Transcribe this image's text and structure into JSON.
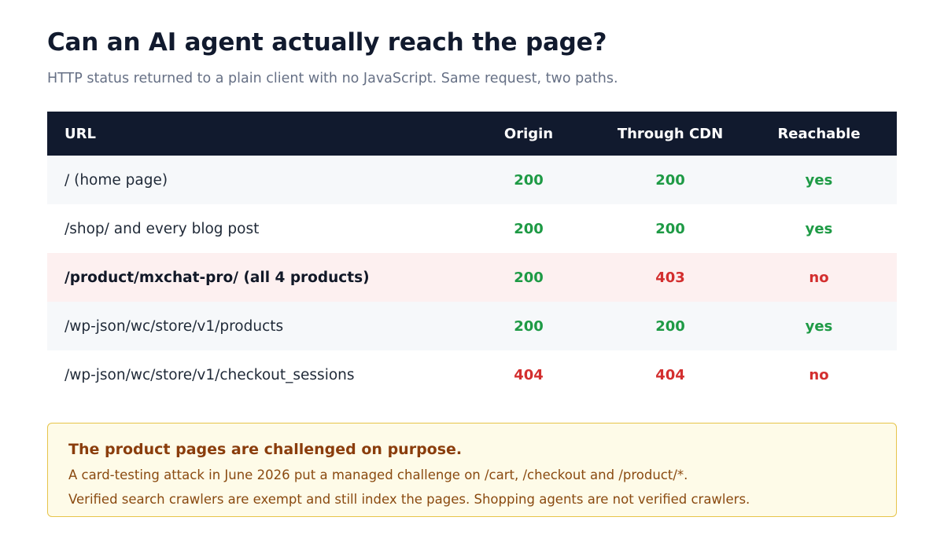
{
  "page": {
    "title": "Can an AI agent actually reach the page?",
    "subtitle": "HTTP status returned to a plain client with no JavaScript. Same request, two paths."
  },
  "table": {
    "headers": {
      "url": "URL",
      "origin": "Origin",
      "cdn": "Through CDN",
      "reachable": "Reachable"
    },
    "rows": [
      {
        "url": "/ (home page)",
        "origin": "200",
        "cdn": "200",
        "reachable": "yes",
        "highlight": false
      },
      {
        "url": "/shop/ and every blog post",
        "origin": "200",
        "cdn": "200",
        "reachable": "yes",
        "highlight": false
      },
      {
        "url": "/product/mxchat-pro/ (all 4 products)",
        "origin": "200",
        "cdn": "403",
        "reachable": "no",
        "highlight": true
      },
      {
        "url": "/wp-json/wc/store/v1/products",
        "origin": "200",
        "cdn": "200",
        "reachable": "yes",
        "highlight": false
      },
      {
        "url": "/wp-json/wc/store/v1/checkout_sessions",
        "origin": "404",
        "cdn": "404",
        "reachable": "no",
        "highlight": false
      }
    ]
  },
  "note": {
    "title": "The product pages are challenged on purpose.",
    "line1": "A card-testing attack in June 2026 put a managed challenge on /cart, /checkout and /product/*.",
    "line2": "Verified search crawlers are exempt and still index the pages. Shopping agents are not verified crawlers."
  },
  "colors": {
    "header_bg": "#111a2e",
    "success": "#1e9a45",
    "failure": "#d32f2f",
    "highlight_row": "#fdf0f0",
    "note_bg": "#fefbe8",
    "note_border": "#e6c44a"
  }
}
